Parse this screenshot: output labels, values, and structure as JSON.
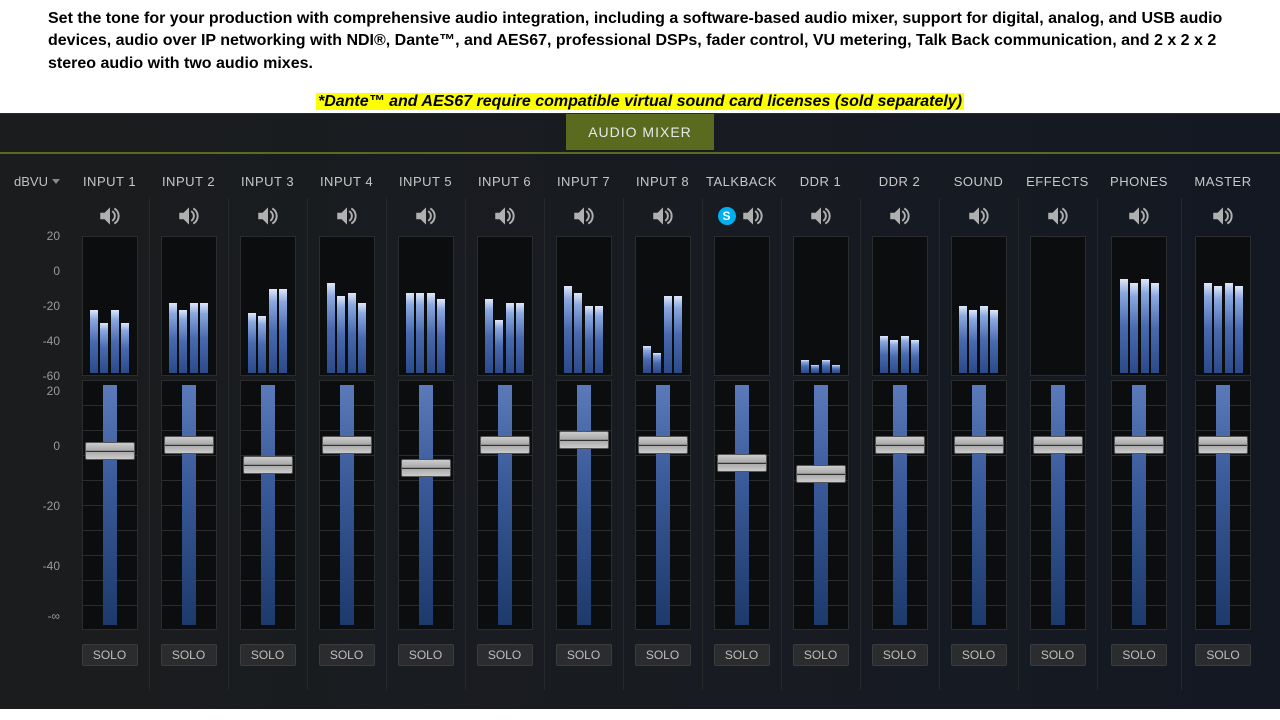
{
  "intro": "Set the tone for your production with comprehensive audio integration, including a software-based audio mixer, support for digital, analog, and USB audio devices, audio over IP networking with NDI®, Dante™, and AES67, professional DSPs, fader control, VU metering, Talk Back communication, and 2 x 2 x 2 stereo audio with two audio mixes.",
  "note": "*Dante™ and AES67 require compatible virtual sound card licenses (sold separately)",
  "tab": "AUDIO MIXER",
  "scale_label": "dBVU",
  "vu_scale": {
    "min": -60,
    "max": 20,
    "ticks": [
      20,
      0,
      -20,
      -40,
      -60
    ]
  },
  "fader_scale": {
    "ticks": [
      {
        "label": "20",
        "pos": 6
      },
      {
        "label": "0",
        "pos": 28
      },
      {
        "label": "-20",
        "pos": 52
      },
      {
        "label": "-40",
        "pos": 76
      },
      {
        "label": "-∞",
        "pos": 96
      }
    ]
  },
  "solo_label": "SOLO",
  "colors": {
    "accent": "#5a6b1f",
    "highlight": "#feff00",
    "bar_grad": [
      "#2a4a8a",
      "#4a6ab0",
      "#8aa8e0",
      "#e0e8f8"
    ]
  },
  "channels": [
    {
      "label": "INPUT 1",
      "vu": [
        [
          -22,
          -30
        ],
        [
          -22,
          -30
        ]
      ],
      "fader": 0,
      "solo": true
    },
    {
      "label": "INPUT 2",
      "vu": [
        [
          -18,
          -22
        ],
        [
          -18,
          -18
        ]
      ],
      "fader": 2,
      "solo": true
    },
    {
      "label": "INPUT 3",
      "vu": [
        [
          -24,
          -26
        ],
        [
          -10,
          -10
        ]
      ],
      "fader": -5,
      "solo": true
    },
    {
      "label": "INPUT 4",
      "vu": [
        [
          -6,
          -14
        ],
        [
          -12,
          -18
        ]
      ],
      "fader": 2,
      "solo": true
    },
    {
      "label": "INPUT 5",
      "vu": [
        [
          -12,
          -12
        ],
        [
          -12,
          -16
        ]
      ],
      "fader": -6,
      "solo": true
    },
    {
      "label": "INPUT 6",
      "vu": [
        [
          -16,
          -28
        ],
        [
          -18,
          -18
        ]
      ],
      "fader": 2,
      "solo": true
    },
    {
      "label": "INPUT 7",
      "vu": [
        [
          -8,
          -12
        ],
        [
          -20,
          -20
        ]
      ],
      "fader": 4,
      "solo": true
    },
    {
      "label": "INPUT 8",
      "vu": [
        [
          -44,
          -48
        ],
        [
          -14,
          -14
        ]
      ],
      "fader": 2,
      "solo": true
    },
    {
      "label": "TALKBACK",
      "vu": [],
      "fader": -4,
      "solo": true,
      "skype": true,
      "skype_label": "S"
    },
    {
      "label": "DDR 1",
      "vu": [
        [
          -52,
          -55
        ],
        [
          -52,
          -55
        ]
      ],
      "fader": -8,
      "solo": true
    },
    {
      "label": "DDR 2",
      "vu": [
        [
          -38,
          -40
        ],
        [
          -38,
          -40
        ]
      ],
      "fader": 2,
      "solo": true
    },
    {
      "label": "SOUND",
      "vu": [
        [
          -20,
          -22
        ],
        [
          -20,
          -22
        ]
      ],
      "fader": 2,
      "solo": true
    },
    {
      "label": "EFFECTS",
      "vu": [],
      "fader": 2,
      "solo": true
    },
    {
      "label": "PHONES",
      "vu": [
        [
          -4,
          -6
        ],
        [
          -4,
          -6
        ]
      ],
      "fader": 2,
      "solo": true,
      "wide": true
    },
    {
      "label": "MASTER",
      "vu": [
        [
          -6,
          -8
        ],
        [
          -6,
          -8
        ]
      ],
      "fader": 2,
      "solo": true,
      "wide": true
    }
  ]
}
